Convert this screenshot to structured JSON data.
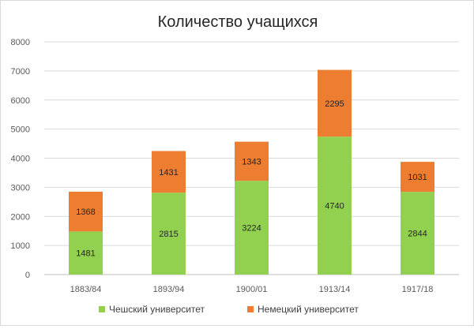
{
  "chart_data": {
    "type": "bar",
    "stacked": true,
    "title": "Количество учащихся",
    "categories": [
      "1883/84",
      "1893/94",
      "1900/01",
      "1913/14",
      "1917/18"
    ],
    "series": [
      {
        "name": "Чешский университет",
        "color": "#92d050",
        "values": [
          1481,
          2815,
          3224,
          4740,
          2844
        ]
      },
      {
        "name": "Немецкий университет",
        "color": "#ed7d31",
        "values": [
          1368,
          1431,
          1343,
          2295,
          1031
        ]
      }
    ],
    "ylim": [
      0,
      8000
    ],
    "yticks": [
      0,
      1000,
      2000,
      3000,
      4000,
      5000,
      6000,
      7000,
      8000
    ],
    "grid": true,
    "legend_position": "bottom",
    "data_labels": true
  }
}
